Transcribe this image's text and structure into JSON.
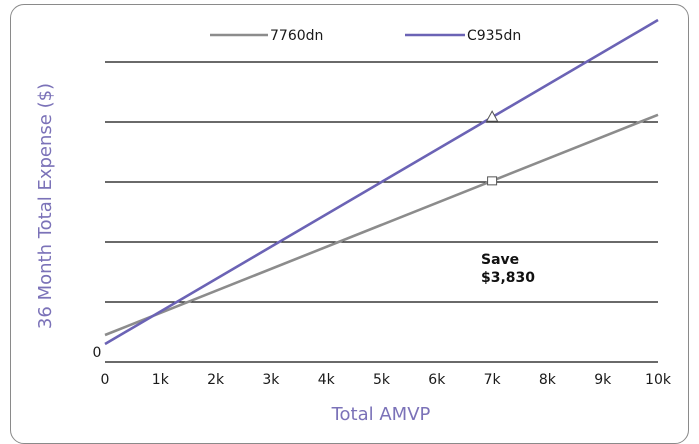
{
  "chart_data": {
    "type": "line",
    "xlabel": "Total AMVP",
    "ylabel": "36 Month Total Expense ($)",
    "x": [
      0,
      10000
    ],
    "x_ticks": [
      "0",
      "1k",
      "2k",
      "3k",
      "4k",
      "5k",
      "6k",
      "7k",
      "8k",
      "9k",
      "10k"
    ],
    "y_ticks": [
      "0"
    ],
    "xlim": [
      0,
      10000
    ],
    "gridlines": 5,
    "series": [
      {
        "name": "7760dn",
        "color": "#8c8c8c",
        "values": [
          0.45,
          4.12
        ],
        "marker": "square",
        "marker_x": 7000
      },
      {
        "name": "C935dn",
        "color": "#6b63b5",
        "values": [
          0.3,
          5.7
        ],
        "marker": "triangle",
        "marker_x": 7000
      }
    ],
    "annotation": {
      "line1": "Save",
      "line2": "$3,830",
      "x": 7000
    },
    "legend_position": "top-center"
  }
}
